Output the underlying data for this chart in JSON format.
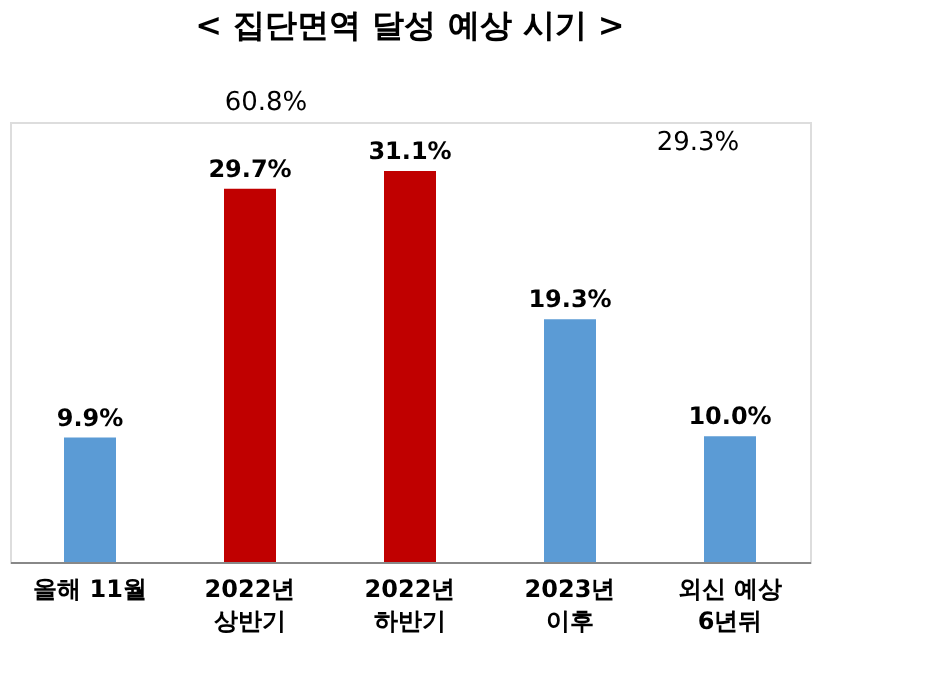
{
  "chart_data": {
    "type": "bar",
    "title": "< 집단면역 달성 예상 시기 >",
    "categories": [
      "올해 11월",
      "2022년\n상반기",
      "2022년\n하반기",
      "2023년\n이후",
      "외신 예상\n6년뒤"
    ],
    "values": [
      9.9,
      29.7,
      31.1,
      19.3,
      10.0
    ],
    "value_labels": [
      "9.9%",
      "29.7%",
      "31.1%",
      "19.3%",
      "10.0%"
    ],
    "colors": [
      "#5b9bd5",
      "#c00000",
      "#c00000",
      "#5b9bd5",
      "#5b9bd5"
    ],
    "annotations": [
      "60.8%",
      "29.3%"
    ],
    "grid": false
  }
}
